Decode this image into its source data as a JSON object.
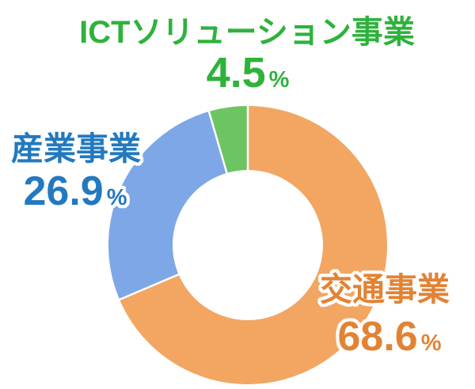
{
  "background_color": "#FFFFFF",
  "chart_data": {
    "type": "pie",
    "variant": "donut",
    "title": "",
    "start_angle_deg": 0,
    "direction": "clockwise",
    "inner_radius_ratio": 0.54,
    "divider_color": "#FFFFFF",
    "legend_position": "labels-around-chart",
    "segments": [
      {
        "id": "transportation",
        "label": "交通事業",
        "value": 68.6,
        "unit": "%",
        "slice_color": "#F2A662",
        "label_color": "#E28334"
      },
      {
        "id": "industrial",
        "label": "産業事業",
        "value": 26.9,
        "unit": "%",
        "slice_color": "#7DA7E7",
        "label_color": "#2279BF"
      },
      {
        "id": "ict-solution",
        "label": "ICTソリューション事業",
        "value": 4.5,
        "unit": "%",
        "slice_color": "#6DC462",
        "label_color": "#2FB23C"
      }
    ]
  }
}
